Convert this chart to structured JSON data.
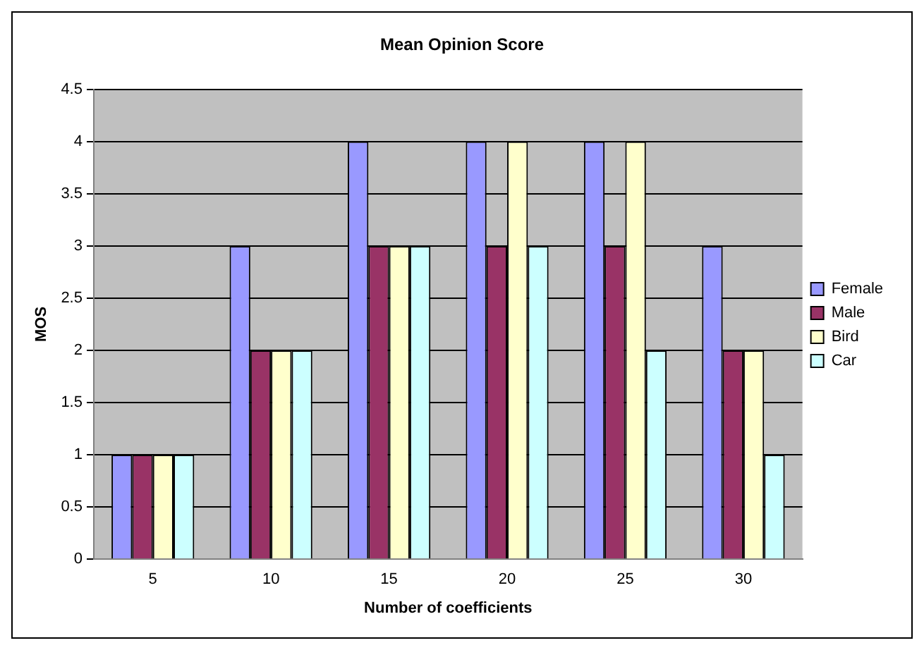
{
  "chart_data": {
    "type": "bar",
    "title": "Mean Opinion Score",
    "xlabel": "Number of coefficients",
    "ylabel": "MOS",
    "categories": [
      "5",
      "10",
      "15",
      "20",
      "25",
      "30"
    ],
    "series": [
      {
        "name": "Female",
        "color": "#9999ff",
        "values": [
          1,
          3,
          4,
          4,
          4,
          3
        ]
      },
      {
        "name": "Male",
        "color": "#993366",
        "values": [
          1,
          2,
          3,
          3,
          3,
          2
        ]
      },
      {
        "name": "Bird",
        "color": "#ffffcc",
        "values": [
          1,
          2,
          3,
          4,
          4,
          2
        ]
      },
      {
        "name": "Car",
        "color": "#ccffff",
        "values": [
          1,
          2,
          3,
          3,
          2,
          1
        ]
      }
    ],
    "ylim": [
      0,
      4.5
    ],
    "yticks": [
      0,
      0.5,
      1,
      1.5,
      2,
      2.5,
      3,
      3.5,
      4,
      4.5
    ],
    "grid": "y",
    "legend": "right"
  }
}
